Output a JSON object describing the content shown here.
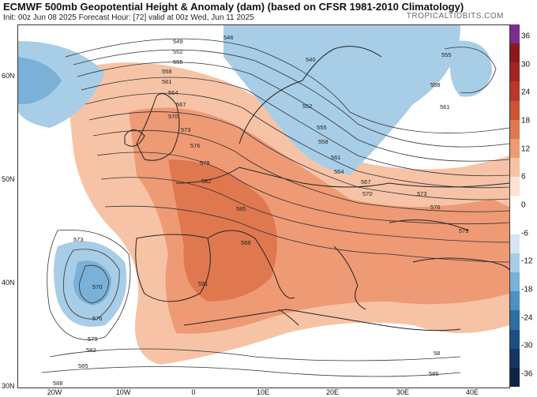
{
  "header": {
    "title": "ECMWF 500mb Geopotential Height & Anomaly (dam) (based on CFSR 1981-2010 Climatology)",
    "subtitle": "Init: 00z Jun 08 2025   Forecast Hour: [72]   valid at 00z Wed, Jun 11 2025",
    "brand": "TROPICALTIDBITS.COM"
  },
  "latitude_labels": [
    "60N",
    "50N",
    "40N",
    "30N"
  ],
  "longitude_labels": [
    "20W",
    "10W",
    "0",
    "10E",
    "20E",
    "30E",
    "40E"
  ],
  "colorbar": {
    "labels": [
      "36",
      "30",
      "24",
      "18",
      "12",
      "6",
      "0",
      "-6",
      "-12",
      "-18",
      "-24",
      "-30",
      "-36"
    ],
    "colors": [
      "#7b2d8e",
      "#8a1a1a",
      "#a32323",
      "#b8382b",
      "#cc5536",
      "#e0784f",
      "#ee9a75",
      "#f7c3a6",
      "#fde3d4",
      "#ffffff",
      "#ffffff",
      "#d5e6f2",
      "#a8cde6",
      "#79b1d8",
      "#4d90c4",
      "#2c6ea8",
      "#1d4f85",
      "#153563",
      "#0f2342"
    ]
  },
  "contour_labels": [
    "546",
    "549",
    "552",
    "555",
    "558",
    "561",
    "564",
    "567",
    "570",
    "573",
    "576",
    "579",
    "582",
    "585",
    "588",
    "591",
    "540",
    "552",
    "555",
    "558",
    "561",
    "564",
    "567",
    "570",
    "573",
    "576",
    "579",
    "558",
    "561",
    "555",
    "573",
    "570",
    "576",
    "579",
    "582",
    "585",
    "588",
    "588",
    "582"
  ],
  "icons": {
    "map": "europe-map-icon"
  }
}
